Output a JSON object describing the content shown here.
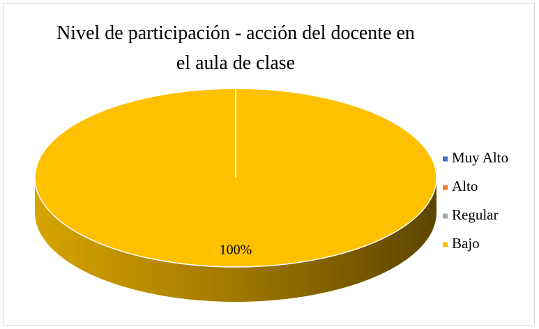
{
  "chart_data": {
    "type": "pie",
    "title": "Nivel de participación - acción del docente en el aula de clase",
    "categories": [
      "Muy Alto",
      "Alto",
      "Regular",
      "Bajo"
    ],
    "values": [
      0,
      0,
      0,
      100
    ],
    "value_labels": [
      null,
      null,
      null,
      "100%"
    ],
    "colors": [
      "#4472c4",
      "#ed7d31",
      "#a5a5a5",
      "#ffc000"
    ],
    "legend": "right"
  }
}
